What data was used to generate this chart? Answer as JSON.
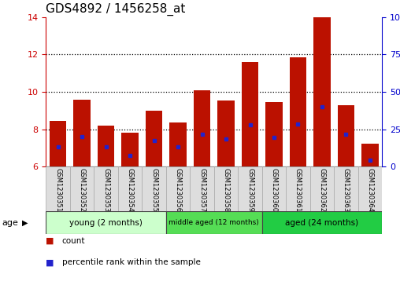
{
  "title": "GDS4892 / 1456258_at",
  "samples": [
    "GSM1230351",
    "GSM1230352",
    "GSM1230353",
    "GSM1230354",
    "GSM1230355",
    "GSM1230356",
    "GSM1230357",
    "GSM1230358",
    "GSM1230359",
    "GSM1230360",
    "GSM1230361",
    "GSM1230362",
    "GSM1230363",
    "GSM1230364"
  ],
  "bar_heights": [
    8.45,
    9.6,
    8.2,
    7.8,
    9.0,
    8.35,
    10.1,
    9.55,
    11.6,
    9.45,
    11.85,
    14.0,
    9.3,
    7.25
  ],
  "percentile_values": [
    7.05,
    7.6,
    7.05,
    6.6,
    7.4,
    7.05,
    7.75,
    7.5,
    8.25,
    7.55,
    8.3,
    9.2,
    7.75,
    6.35
  ],
  "bar_bottom": 6.0,
  "ylim_left": [
    6,
    14
  ],
  "ylim_right": [
    0,
    100
  ],
  "yticks_left": [
    6,
    8,
    10,
    12,
    14
  ],
  "yticks_right": [
    0,
    25,
    50,
    75,
    100
  ],
  "bar_color": "#bb1100",
  "dot_color": "#2222cc",
  "grid_color": "#000000",
  "groups": [
    {
      "label": "young (2 months)",
      "start": 0,
      "end": 5,
      "color": "#ccffcc"
    },
    {
      "label": "middle aged (12 months)",
      "start": 5,
      "end": 9,
      "color": "#55dd55"
    },
    {
      "label": "aged (24 months)",
      "start": 9,
      "end": 14,
      "color": "#22cc44"
    }
  ],
  "age_label": "age",
  "legend_items": [
    {
      "color": "#bb1100",
      "label": "count"
    },
    {
      "color": "#2222cc",
      "label": "percentile rank within the sample"
    }
  ],
  "title_fontsize": 11,
  "tick_fontsize": 8,
  "bar_width": 0.7,
  "bg_color": "#ffffff",
  "plot_bg_color": "#ffffff",
  "label_box_color": "#dddddd",
  "left_axis_color": "#cc0000",
  "right_axis_color": "#0000cc"
}
